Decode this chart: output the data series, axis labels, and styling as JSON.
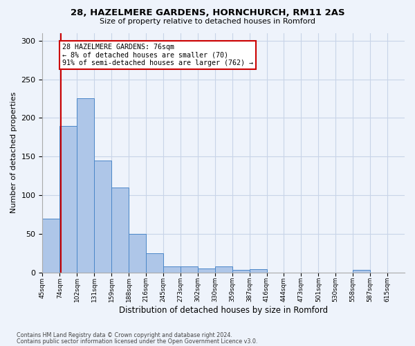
{
  "title1": "28, HAZELMERE GARDENS, HORNCHURCH, RM11 2AS",
  "title2": "Size of property relative to detached houses in Romford",
  "xlabel": "Distribution of detached houses by size in Romford",
  "ylabel": "Number of detached properties",
  "footer1": "Contains HM Land Registry data © Crown copyright and database right 2024.",
  "footer2": "Contains public sector information licensed under the Open Government Licence v3.0.",
  "bin_labels": [
    "45sqm",
    "74sqm",
    "102sqm",
    "131sqm",
    "159sqm",
    "188sqm",
    "216sqm",
    "245sqm",
    "273sqm",
    "302sqm",
    "330sqm",
    "359sqm",
    "387sqm",
    "416sqm",
    "444sqm",
    "473sqm",
    "501sqm",
    "530sqm",
    "558sqm",
    "587sqm",
    "615sqm"
  ],
  "bar_values": [
    70,
    190,
    225,
    145,
    110,
    50,
    25,
    8,
    8,
    5,
    8,
    3,
    4,
    0,
    0,
    0,
    0,
    0,
    3,
    0
  ],
  "bar_color": "#aec6e8",
  "bar_edgecolor": "#4a86c8",
  "bg_color": "#eef3fb",
  "grid_color": "#c8d4e8",
  "red_line_x": 1.07,
  "annotation_text": "28 HAZELMERE GARDENS: 76sqm\n← 8% of detached houses are smaller (70)\n91% of semi-detached houses are larger (762) →",
  "annotation_box_color": "#ffffff",
  "annotation_border_color": "#cc0000",
  "ylim": [
    0,
    310
  ],
  "yticks": [
    0,
    50,
    100,
    150,
    200,
    250,
    300
  ]
}
